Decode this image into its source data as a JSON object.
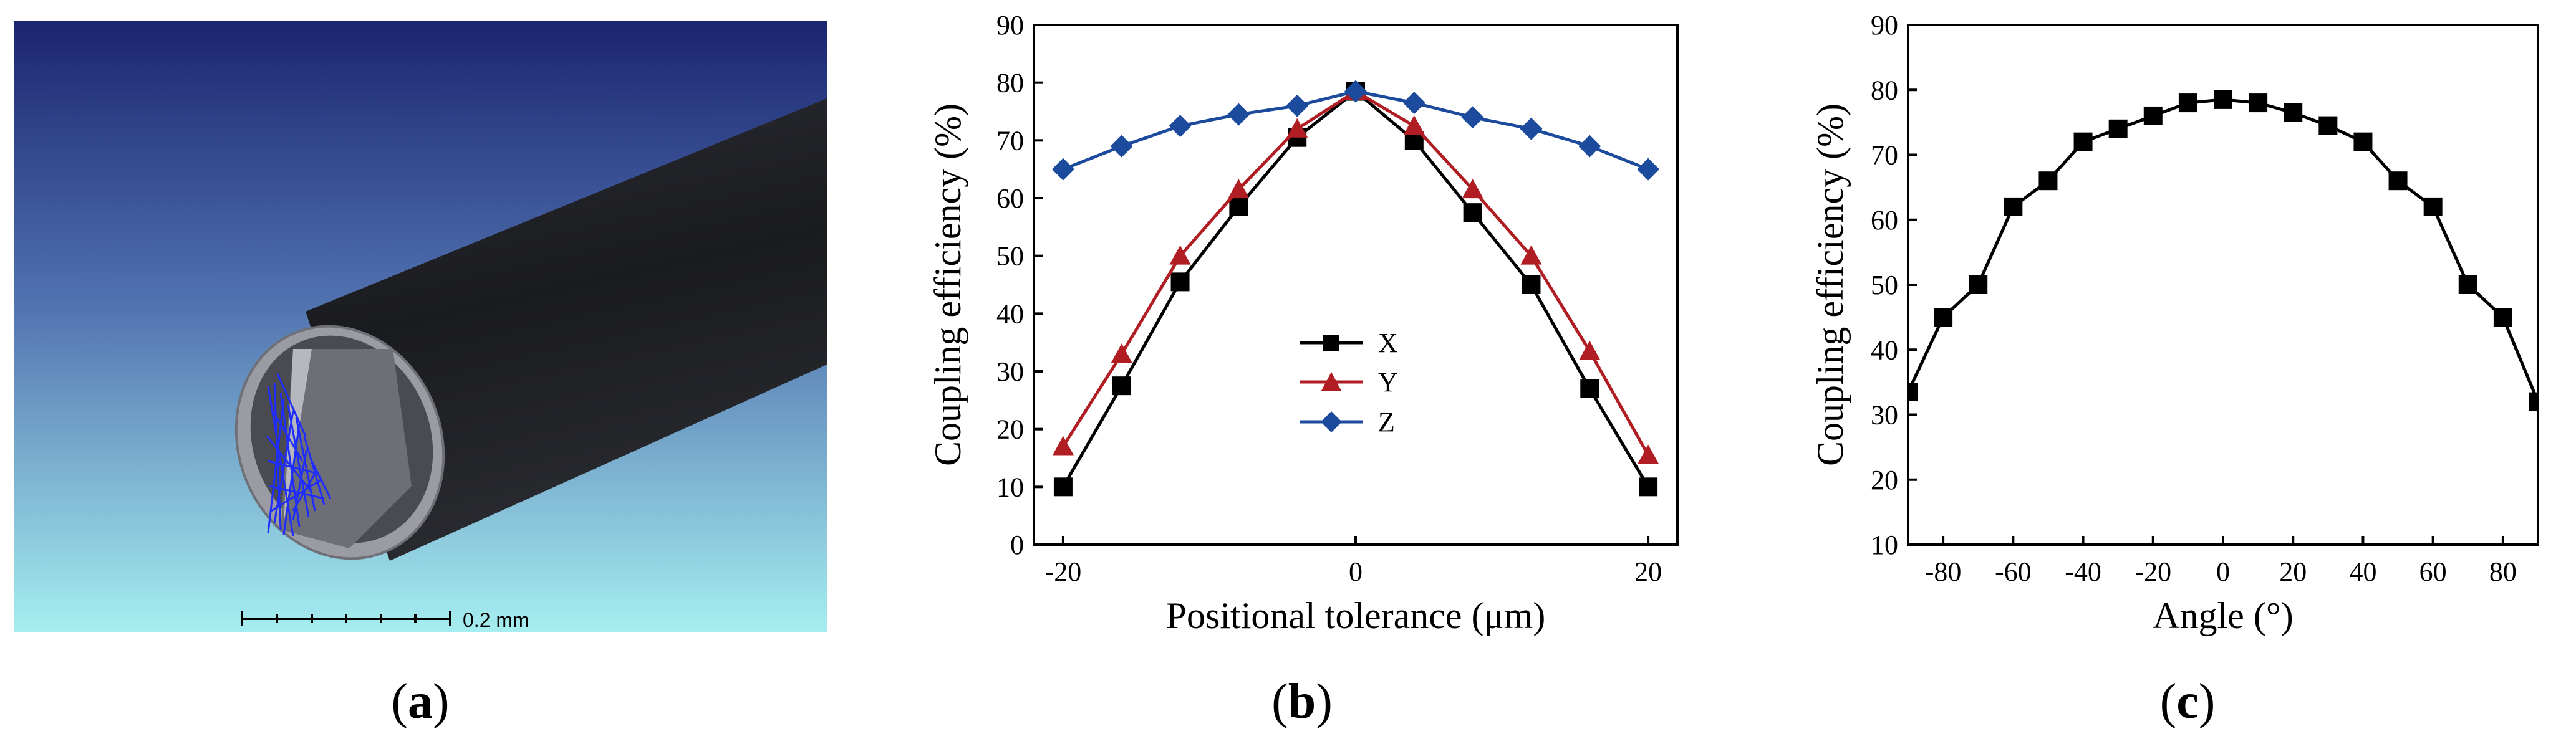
{
  "panel_a": {
    "label_open": "(",
    "label_letter": "a",
    "label_close": ")",
    "scale_bar_label": "0.2 mm",
    "colors": {
      "bg_top": "#1b2570",
      "bg_bottom": "#a6eef0",
      "fiber": "#1f2024",
      "rays": "#1f2cff"
    }
  },
  "panel_b": {
    "label_open": "(",
    "label_letter": "b",
    "label_close": ")"
  },
  "panel_c": {
    "label_open": "(",
    "label_letter": "c",
    "label_close": ")"
  },
  "chart_data": [
    {
      "type": "line",
      "xlabel": "Positional tolerance (μm)",
      "ylabel": "Coupling efficiency (%)",
      "xlim": [
        -22,
        22
      ],
      "ylim": [
        0,
        90
      ],
      "xticks": [
        -20,
        0,
        20
      ],
      "yticks": [
        0,
        10,
        20,
        30,
        40,
        50,
        60,
        70,
        80,
        90
      ],
      "legend_position": "center",
      "series": [
        {
          "name": "X",
          "marker": "square",
          "color": "#000000",
          "x": [
            -20,
            -16,
            -12,
            -8,
            -4,
            0,
            4,
            8,
            12,
            16,
            20
          ],
          "y": [
            10,
            27.5,
            45.5,
            58.5,
            70.5,
            78.5,
            70,
            57.5,
            45,
            27,
            10
          ]
        },
        {
          "name": "Y",
          "marker": "triangle",
          "color": "#b01e24",
          "x": [
            -20,
            -16,
            -12,
            -8,
            -4,
            0,
            4,
            8,
            12,
            16,
            20
          ],
          "y": [
            17,
            33,
            50,
            61.5,
            72,
            78.5,
            72.5,
            61.5,
            50,
            33.5,
            15.5
          ]
        },
        {
          "name": "Z",
          "marker": "diamond",
          "color": "#1c4a9c",
          "x": [
            -20,
            -16,
            -12,
            -8,
            -4,
            0,
            4,
            8,
            12,
            16,
            20
          ],
          "y": [
            65,
            69,
            72.5,
            74.5,
            76,
            78.5,
            76.5,
            74,
            72,
            69,
            65
          ]
        }
      ]
    },
    {
      "type": "line",
      "xlabel": "Angle (°)",
      "ylabel": "Coupling efficiency (%)",
      "xlim": [
        -90,
        90
      ],
      "ylim": [
        10,
        90
      ],
      "xticks": [
        -80,
        -60,
        -40,
        -20,
        0,
        20,
        40,
        60,
        80
      ],
      "yticks": [
        10,
        20,
        30,
        40,
        50,
        60,
        70,
        80,
        90
      ],
      "series": [
        {
          "name": "",
          "marker": "square",
          "color": "#000000",
          "x": [
            -90,
            -80,
            -70,
            -60,
            -50,
            -40,
            -30,
            -20,
            -10,
            0,
            10,
            20,
            30,
            40,
            50,
            60,
            70,
            80,
            90
          ],
          "y": [
            33.5,
            45,
            50,
            62,
            66,
            72,
            74,
            76,
            78,
            78.5,
            78,
            76.5,
            74.5,
            72,
            66,
            62,
            50,
            45,
            32
          ]
        }
      ]
    }
  ]
}
